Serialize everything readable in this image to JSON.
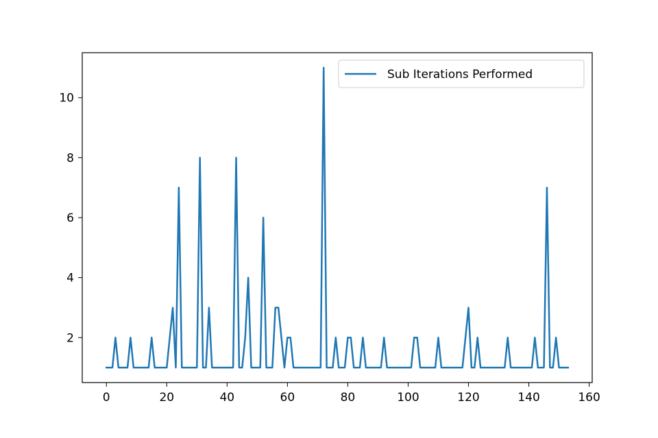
{
  "chart_data": {
    "type": "line",
    "title": "",
    "xlabel": "",
    "ylabel": "",
    "xlim": [
      -8,
      161
    ],
    "ylim": [
      0.5,
      11.5
    ],
    "xticks": [
      0,
      20,
      40,
      60,
      80,
      100,
      120,
      140,
      160
    ],
    "yticks": [
      2,
      4,
      6,
      8,
      10
    ],
    "grid": false,
    "legend_position": "top-right",
    "series": [
      {
        "name": "Sub Iterations Performed",
        "color": "#1f77b4",
        "x": [
          0,
          1,
          2,
          3,
          4,
          5,
          6,
          7,
          8,
          9,
          10,
          11,
          12,
          13,
          14,
          15,
          16,
          17,
          18,
          19,
          20,
          21,
          22,
          23,
          24,
          25,
          26,
          27,
          28,
          29,
          30,
          31,
          32,
          33,
          34,
          35,
          36,
          37,
          38,
          39,
          40,
          41,
          42,
          43,
          44,
          45,
          46,
          47,
          48,
          49,
          50,
          51,
          52,
          53,
          54,
          55,
          56,
          57,
          58,
          59,
          60,
          61,
          62,
          63,
          64,
          65,
          66,
          67,
          68,
          69,
          70,
          71,
          72,
          73,
          74,
          75,
          76,
          77,
          78,
          79,
          80,
          81,
          82,
          83,
          84,
          85,
          86,
          87,
          88,
          89,
          90,
          91,
          92,
          93,
          94,
          95,
          96,
          97,
          98,
          99,
          100,
          101,
          102,
          103,
          104,
          105,
          106,
          107,
          108,
          109,
          110,
          111,
          112,
          113,
          114,
          115,
          116,
          117,
          118,
          119,
          120,
          121,
          122,
          123,
          124,
          125,
          126,
          127,
          128,
          129,
          130,
          131,
          132,
          133,
          134,
          135,
          136,
          137,
          138,
          139,
          140,
          141,
          142,
          143,
          144,
          145,
          146,
          147,
          148,
          149,
          150,
          151,
          152,
          153
        ],
        "y": [
          1,
          1,
          1,
          2,
          1,
          1,
          1,
          1,
          2,
          1,
          1,
          1,
          1,
          1,
          1,
          2,
          1,
          1,
          1,
          1,
          1,
          2,
          3,
          1,
          7,
          1,
          1,
          1,
          1,
          1,
          1,
          8,
          1,
          1,
          3,
          1,
          1,
          1,
          1,
          1,
          1,
          1,
          1,
          8,
          1,
          1,
          2,
          4,
          1,
          1,
          1,
          1,
          6,
          1,
          1,
          1,
          3,
          3,
          2,
          1,
          2,
          2,
          1,
          1,
          1,
          1,
          1,
          1,
          1,
          1,
          1,
          1,
          11,
          1,
          1,
          1,
          2,
          1,
          1,
          1,
          2,
          2,
          1,
          1,
          1,
          2,
          1,
          1,
          1,
          1,
          1,
          1,
          2,
          1,
          1,
          1,
          1,
          1,
          1,
          1,
          1,
          1,
          2,
          2,
          1,
          1,
          1,
          1,
          1,
          1,
          2,
          1,
          1,
          1,
          1,
          1,
          1,
          1,
          1,
          2,
          3,
          1,
          1,
          2,
          1,
          1,
          1,
          1,
          1,
          1,
          1,
          1,
          1,
          2,
          1,
          1,
          1,
          1,
          1,
          1,
          1,
          1,
          2,
          1,
          1,
          1,
          7,
          1,
          1,
          2,
          1,
          1,
          1,
          1
        ]
      }
    ]
  }
}
